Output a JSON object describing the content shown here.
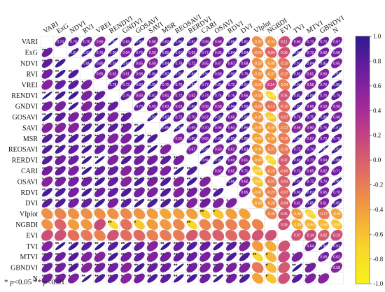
{
  "chart_data": {
    "type": "heatmap",
    "style": "correlation matrix, ellipses below diagonal, coloured ellipses with r values above diagonal",
    "variables": [
      "VARI",
      "ExG",
      "NDVI",
      "RVI",
      "VREI",
      "RENDVI",
      "GNDVI",
      "GOSAVI",
      "SAVI",
      "MSR",
      "REOSAVI",
      "RERDVI",
      "CARI",
      "OSAVI",
      "RDVI",
      "DVI",
      "VIplot",
      "NGBDI",
      "EVI",
      "TVI",
      "MTVI",
      "GBNDVI",
      "N"
    ],
    "colorbar": {
      "range": [
        -1.0,
        1.0
      ],
      "ticks": [
        "1.0",
        "0.8",
        "0.6",
        "0.4",
        "0.2",
        "0.0",
        "-0.2",
        "-0.4",
        "-0.6",
        "-0.8",
        "-1.0"
      ],
      "colors": [
        "#2e1a8f",
        "#6d1ea0",
        "#a12a9a",
        "#c94a7c",
        "#e6735c",
        "#f3a33a",
        "#f9d62c",
        "#f7f21a"
      ]
    },
    "r_values": {
      "VIplot": [
        -0.32,
        -0.25,
        -0.33,
        -0.33,
        -0.32,
        -0.33,
        -0.28,
        -0.35,
        -0.4,
        -0.45,
        -0.41,
        -0.4,
        -0.66,
        -0.62,
        -0.41,
        -0.43,
        null,
        -0.26,
        0.06,
        -0.39,
        -0.73,
        -0.17,
        -0.45
      ],
      "NGBDI": [
        -0.34,
        -0.04,
        -0.4,
        -0.37,
        0.14,
        -0.75,
        -0.13,
        -0.64,
        -0.4,
        -0.38,
        -0.27,
        -0.72,
        -0.26,
        -0.21,
        -0.23,
        -0.28,
        -0.26,
        null,
        0.08,
        -0.49,
        -0.54,
        -0.56,
        -0.62
      ]
    },
    "significance_legend": "* p<0.05 ** p<0.01"
  },
  "footnote": {
    "star1": "*",
    "p1": "p",
    "t1": "<0.05  ",
    "star2": "**",
    "p2": "p",
    "t2": "<0.01"
  }
}
